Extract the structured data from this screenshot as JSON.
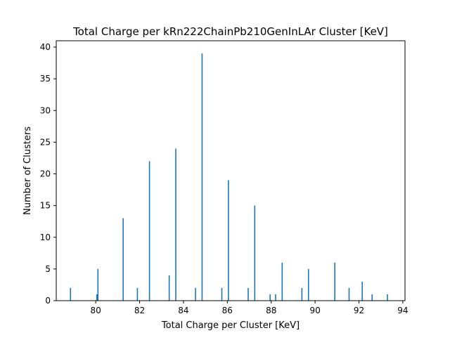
{
  "chart_data": {
    "type": "bar",
    "title": "Total Charge per kRn222ChainPb210GenInLAr Cluster [KeV]",
    "xlabel": "Total Charge per Cluster [KeV]",
    "ylabel": "Number of Clusters",
    "xlim": [
      78.2,
      94.1
    ],
    "ylim": [
      0,
      41
    ],
    "xticks": [
      80,
      82,
      84,
      86,
      88,
      90,
      92,
      94
    ],
    "yticks": [
      0,
      5,
      10,
      15,
      20,
      25,
      30,
      35,
      40
    ],
    "bar_color": "#1f77b4",
    "bars": [
      {
        "x": 78.85,
        "y": 2
      },
      {
        "x": 80.05,
        "y": 1
      },
      {
        "x": 80.1,
        "y": 5
      },
      {
        "x": 81.25,
        "y": 13
      },
      {
        "x": 81.9,
        "y": 2
      },
      {
        "x": 82.45,
        "y": 22
      },
      {
        "x": 83.35,
        "y": 4
      },
      {
        "x": 83.65,
        "y": 24
      },
      {
        "x": 84.55,
        "y": 2
      },
      {
        "x": 84.85,
        "y": 39
      },
      {
        "x": 85.75,
        "y": 2
      },
      {
        "x": 86.05,
        "y": 19
      },
      {
        "x": 86.95,
        "y": 2
      },
      {
        "x": 87.25,
        "y": 15
      },
      {
        "x": 87.95,
        "y": 1
      },
      {
        "x": 88.2,
        "y": 1
      },
      {
        "x": 88.5,
        "y": 6
      },
      {
        "x": 89.4,
        "y": 2
      },
      {
        "x": 89.7,
        "y": 5
      },
      {
        "x": 90.9,
        "y": 6
      },
      {
        "x": 91.55,
        "y": 2
      },
      {
        "x": 92.15,
        "y": 3
      },
      {
        "x": 92.6,
        "y": 1
      },
      {
        "x": 93.3,
        "y": 1
      }
    ]
  }
}
